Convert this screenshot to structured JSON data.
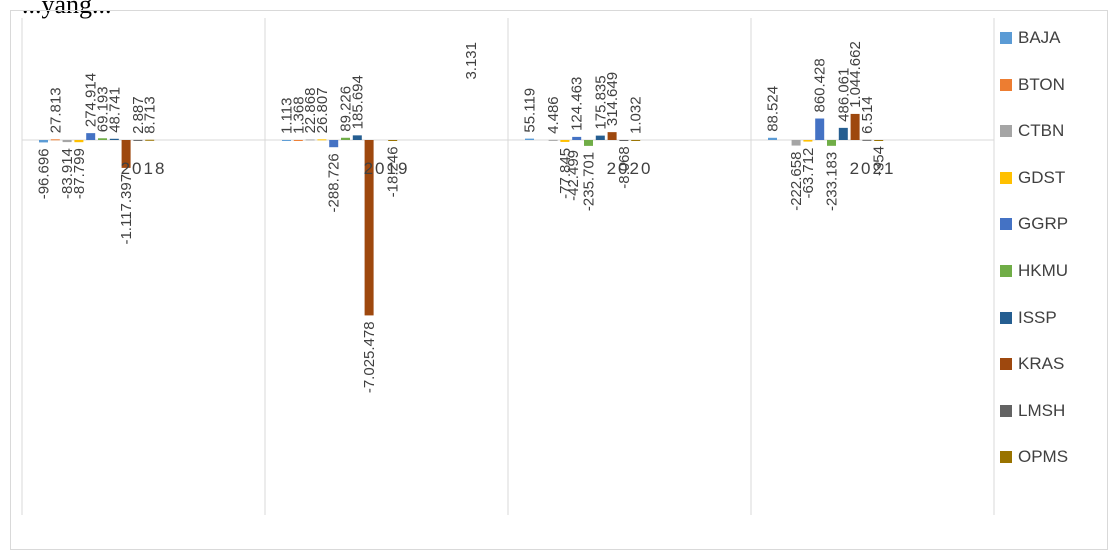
{
  "top_caption": "...yang...",
  "chart_data": {
    "type": "bar",
    "categories": [
      "2018",
      "2019",
      "2020",
      "2021"
    ],
    "xlabel": "",
    "ylabel": "",
    "legend_position": "right",
    "grid": false,
    "series": [
      {
        "name": "BAJA",
        "color": "#5b9bd5",
        "values": [
          -96.696,
          1.113,
          55.119,
          88.524
        ],
        "labels": [
          "-96.696",
          "1.113",
          "55.119",
          "88.524"
        ]
      },
      {
        "name": "BTON",
        "color": "#ed7d31",
        "values": [
          27.813,
          1.368,
          0,
          0
        ],
        "labels": [
          "27.813",
          "1.368",
          "",
          ""
        ]
      },
      {
        "name": "CTBN",
        "color": "#a5a5a5",
        "values": [
          -83.914,
          22.868,
          4.486,
          -222.658
        ],
        "labels": [
          "-83.914",
          "22.868",
          "4.486",
          "-222.658"
        ]
      },
      {
        "name": "GDST",
        "color": "#ffc000",
        "values": [
          -87.799,
          26.807,
          -77.845,
          -63.712
        ],
        "labels": [
          "-87.799",
          "26.807",
          "-77.845",
          "-63.712"
        ]
      },
      {
        "name": "GGRP",
        "color": "#4472c4",
        "values": [
          274.914,
          -288.726,
          124.463,
          860.428
        ],
        "labels": [
          "274.914",
          "-288.726",
          "124.463",
          "860.428"
        ]
      },
      {
        "name": "HKMU",
        "color": "#70ad47",
        "values": [
          69.193,
          89.226,
          -235.701,
          -233.183
        ],
        "labels": [
          "69.193",
          "89.226",
          "-235.701",
          "-233.183"
        ]
      },
      {
        "name": "ISSP",
        "color": "#255e91",
        "values": [
          48.741,
          185.694,
          175.835,
          486.061
        ],
        "labels": [
          "48.741",
          "185.694",
          "175.835",
          "486.061"
        ]
      },
      {
        "name": "KRAS",
        "color": "#9e480e",
        "values": [
          -1117.397,
          -7025.478,
          314.649,
          1044.662
        ],
        "labels": [
          "-1.117.397",
          "-7.025.478",
          "314.649",
          "1.044.662"
        ]
      },
      {
        "name": "LMSH",
        "color": "#636363",
        "values": [
          2.887,
          0,
          -8.068,
          6.514
        ],
        "labels": [
          "2.887",
          "",
          "-8.068",
          "6.514"
        ]
      },
      {
        "name": "OPMS",
        "color": "#997300",
        "values": [
          8.713,
          -18.246,
          1.032,
          -0.354
        ],
        "labels": [
          "8.713",
          "-18.246",
          "1.032",
          "-354"
        ]
      }
    ],
    "extra_labels": [
      {
        "category": "2019",
        "text": "3.131"
      },
      {
        "category": "2020",
        "text": "-42.499"
      }
    ]
  }
}
